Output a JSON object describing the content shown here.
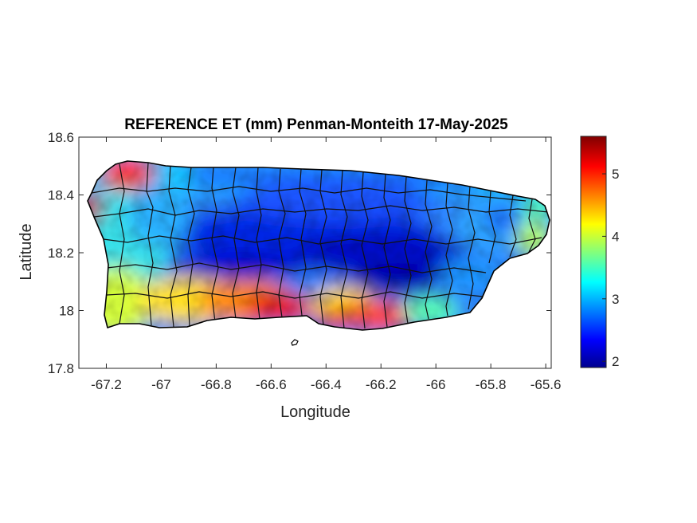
{
  "title": "REFERENCE ET (mm) Penman-Monteith 17-May-2025",
  "x_axis": {
    "label": "Longitude",
    "range": [
      -67.3,
      -65.58
    ],
    "ticks": [
      {
        "value": -67.2,
        "label": "-67.2"
      },
      {
        "value": -67.0,
        "label": "-67"
      },
      {
        "value": -66.8,
        "label": "-66.8"
      },
      {
        "value": -66.6,
        "label": "-66.6"
      },
      {
        "value": -66.4,
        "label": "-66.4"
      },
      {
        "value": -66.2,
        "label": "-66.2"
      },
      {
        "value": -66.0,
        "label": "-66"
      },
      {
        "value": -65.8,
        "label": "-65.8"
      },
      {
        "value": -65.6,
        "label": "-65.6"
      }
    ]
  },
  "y_axis": {
    "label": "Latitude",
    "range": [
      17.8,
      18.6
    ],
    "ticks": [
      {
        "value": 17.8,
        "label": "17.8"
      },
      {
        "value": 18.0,
        "label": "18"
      },
      {
        "value": 18.2,
        "label": "18.2"
      },
      {
        "value": 18.4,
        "label": "18.4"
      },
      {
        "value": 18.6,
        "label": "18.6"
      }
    ]
  },
  "colorbar": {
    "colormap": "jet",
    "range": [
      1.9,
      5.6
    ],
    "ticks": [
      {
        "value": 2,
        "label": "2"
      },
      {
        "value": 3,
        "label": "3"
      },
      {
        "value": 4,
        "label": "4"
      },
      {
        "value": 5,
        "label": "5"
      }
    ]
  },
  "map_data": {
    "region": "Puerto Rico",
    "variable": "Reference evapotranspiration (mm)",
    "boundaries": "municipalities",
    "zones": [
      {
        "name": "northwest tip",
        "value": 5.4
      },
      {
        "name": "north coast",
        "value": 3.5
      },
      {
        "name": "central highlands",
        "value": 2.1
      },
      {
        "name": "south-central coast",
        "value": 5.2
      },
      {
        "name": "southwest coast",
        "value": 4.3
      },
      {
        "name": "east",
        "value": 3.3
      },
      {
        "name": "far east coast",
        "value": 4.0
      }
    ]
  }
}
